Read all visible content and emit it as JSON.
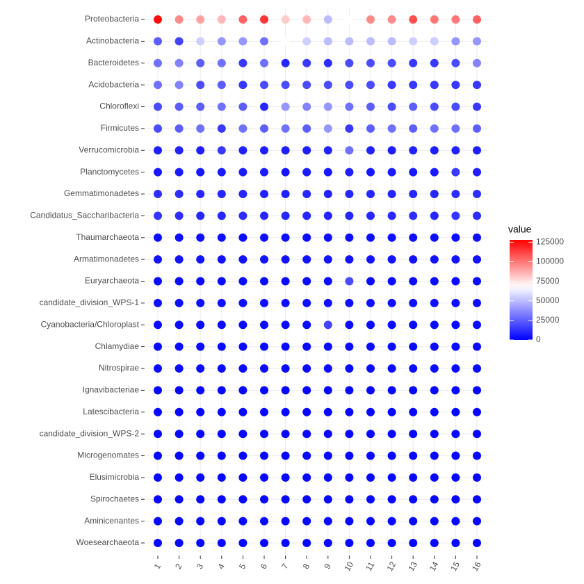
{
  "chart_data": {
    "type": "dot-heatmap",
    "x": [
      "1",
      "2",
      "3",
      "4",
      "5",
      "6",
      "7",
      "8",
      "9",
      "10",
      "11",
      "12",
      "13",
      "14",
      "15",
      "16"
    ],
    "categories": [
      "Proteobacteria",
      "Actinobacteria",
      "Bacteroidetes",
      "Acidobacteria",
      "Chloroflexi",
      "Firmicutes",
      "Verrucomicrobia",
      "Planctomycetes",
      "Gemmatimonadetes",
      "Candidatus_Saccharibacteria",
      "Thaumarchaeota",
      "Armatimonadetes",
      "Euryarchaeota",
      "candidate_division_WPS-1",
      "Cyanobacteria/Chloroplast",
      "Chlamydiae",
      "Nitrospirae",
      "Ignavibacteriae",
      "Latescibacteria",
      "candidate_division_WPS-2",
      "Microgenomates",
      "Elusimicrobia",
      "Spirochaetes",
      "Aminicenantes",
      "Woesearchaeota"
    ],
    "values": [
      [
        125000,
        95000,
        90000,
        85000,
        105000,
        115000,
        80000,
        85000,
        50000,
        68000,
        95000,
        95000,
        110000,
        100000,
        100000,
        105000
      ],
      [
        25000,
        18000,
        55000,
        40000,
        40000,
        30000,
        68000,
        55000,
        50000,
        50000,
        50000,
        50000,
        55000,
        55000,
        40000,
        40000
      ],
      [
        30000,
        35000,
        25000,
        30000,
        15000,
        30000,
        10000,
        15000,
        12000,
        20000,
        20000,
        20000,
        15000,
        15000,
        20000,
        35000
      ],
      [
        30000,
        35000,
        20000,
        25000,
        15000,
        20000,
        20000,
        20000,
        20000,
        20000,
        20000,
        15000,
        15000,
        15000,
        15000,
        15000
      ],
      [
        20000,
        25000,
        25000,
        30000,
        25000,
        10000,
        40000,
        35000,
        40000,
        30000,
        25000,
        20000,
        25000,
        20000,
        20000,
        15000
      ],
      [
        20000,
        25000,
        30000,
        15000,
        30000,
        25000,
        30000,
        25000,
        40000,
        15000,
        25000,
        30000,
        25000,
        30000,
        30000,
        25000
      ],
      [
        8000,
        9000,
        8000,
        15000,
        9000,
        8000,
        8000,
        8000,
        9000,
        30000,
        9000,
        8000,
        9000,
        8000,
        9000,
        8000
      ],
      [
        6000,
        7000,
        6000,
        7000,
        7000,
        7000,
        6000,
        7000,
        6000,
        8000,
        6000,
        7000,
        7000,
        7000,
        15000,
        8000
      ],
      [
        12000,
        12000,
        10000,
        10000,
        10000,
        9000,
        8000,
        10000,
        9000,
        10000,
        10000,
        10000,
        10000,
        10000,
        12000,
        12000
      ],
      [
        14000,
        12000,
        10000,
        10000,
        12000,
        10000,
        10000,
        10000,
        9000,
        10000,
        10000,
        11000,
        12000,
        10000,
        14000,
        12000
      ],
      [
        4000,
        4000,
        4000,
        4000,
        4000,
        4000,
        4000,
        4000,
        4000,
        4000,
        4000,
        4000,
        4000,
        4000,
        4000,
        4000
      ],
      [
        5000,
        5000,
        5000,
        5000,
        5000,
        5000,
        5000,
        5000,
        5000,
        5000,
        5000,
        5000,
        5000,
        5000,
        5000,
        5000
      ],
      [
        3000,
        3000,
        3000,
        3000,
        3000,
        3000,
        3000,
        3000,
        3000,
        20000,
        3000,
        3000,
        3000,
        3000,
        3000,
        3000
      ],
      [
        4000,
        4000,
        4000,
        4000,
        4000,
        4000,
        4000,
        4000,
        4000,
        4000,
        4000,
        4000,
        4000,
        4000,
        4000,
        4000
      ],
      [
        3000,
        3000,
        3000,
        3000,
        3000,
        3000,
        3000,
        3000,
        18000,
        3000,
        3000,
        3000,
        3000,
        3000,
        3000,
        3000
      ],
      [
        3000,
        3000,
        3000,
        3000,
        3000,
        3000,
        3000,
        3000,
        3000,
        3000,
        3000,
        3000,
        3000,
        3000,
        3000,
        3000
      ],
      [
        3000,
        3000,
        3000,
        3000,
        3000,
        3000,
        3000,
        3000,
        3000,
        3000,
        3000,
        3000,
        3000,
        3000,
        3000,
        3000
      ],
      [
        2000,
        2000,
        2000,
        2000,
        2000,
        2000,
        2000,
        2000,
        2000,
        2000,
        2000,
        2000,
        2000,
        2000,
        2000,
        2000
      ],
      [
        2000,
        2000,
        2000,
        2000,
        2000,
        2000,
        2000,
        2000,
        2000,
        2000,
        2000,
        2000,
        2000,
        2000,
        2000,
        2000
      ],
      [
        2000,
        2000,
        2000,
        2000,
        2000,
        2000,
        2000,
        2000,
        2000,
        2000,
        2000,
        2000,
        2000,
        2000,
        2000,
        2000
      ],
      [
        2000,
        2000,
        2000,
        2000,
        2000,
        2000,
        2000,
        2000,
        2000,
        2000,
        2000,
        2000,
        2000,
        2000,
        2000,
        2000
      ],
      [
        2000,
        2000,
        2000,
        2000,
        2000,
        2000,
        2000,
        2000,
        2000,
        2000,
        2000,
        2000,
        2000,
        2000,
        2000,
        2000
      ],
      [
        2000,
        2000,
        2000,
        2000,
        2000,
        2000,
        2000,
        2000,
        2000,
        2000,
        2000,
        2000,
        2000,
        2000,
        2000,
        2000
      ],
      [
        2000,
        2000,
        2000,
        2000,
        2000,
        2000,
        2000,
        2000,
        2000,
        2000,
        2000,
        2000,
        2000,
        2000,
        2000,
        2000
      ],
      [
        2000,
        2000,
        2000,
        2000,
        2000,
        2000,
        2000,
        2000,
        2000,
        2000,
        2000,
        2000,
        2000,
        2000,
        2000,
        2000
      ]
    ],
    "legend_title": "value",
    "colors": [
      "#0000ff",
      "#ffffff",
      "#ff0000"
    ],
    "color_midpoint": 68000,
    "colorlim": [
      0,
      128000
    ],
    "colorticks": [
      0,
      25000,
      50000,
      75000,
      100000,
      125000
    ],
    "grid": true
  }
}
